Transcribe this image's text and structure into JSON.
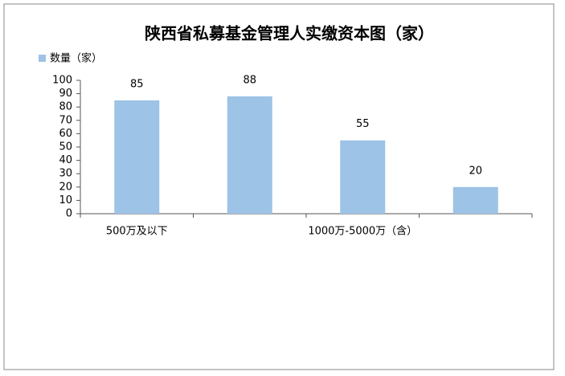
{
  "chart_data": {
    "type": "bar",
    "title": "陕西省私募基金管理人实缴资本图（家）",
    "categories": [
      "500万及以下",
      null,
      "1000万-5000万（含）",
      null
    ],
    "series": [
      {
        "name": "数量（家）",
        "color": "#9dc3e6",
        "values": [
          85,
          88,
          55,
          20
        ]
      }
    ],
    "ylim": [
      0,
      100
    ],
    "yticks": [
      0,
      10,
      20,
      30,
      40,
      50,
      60,
      70,
      80,
      90,
      100
    ],
    "legend": "top-left"
  }
}
